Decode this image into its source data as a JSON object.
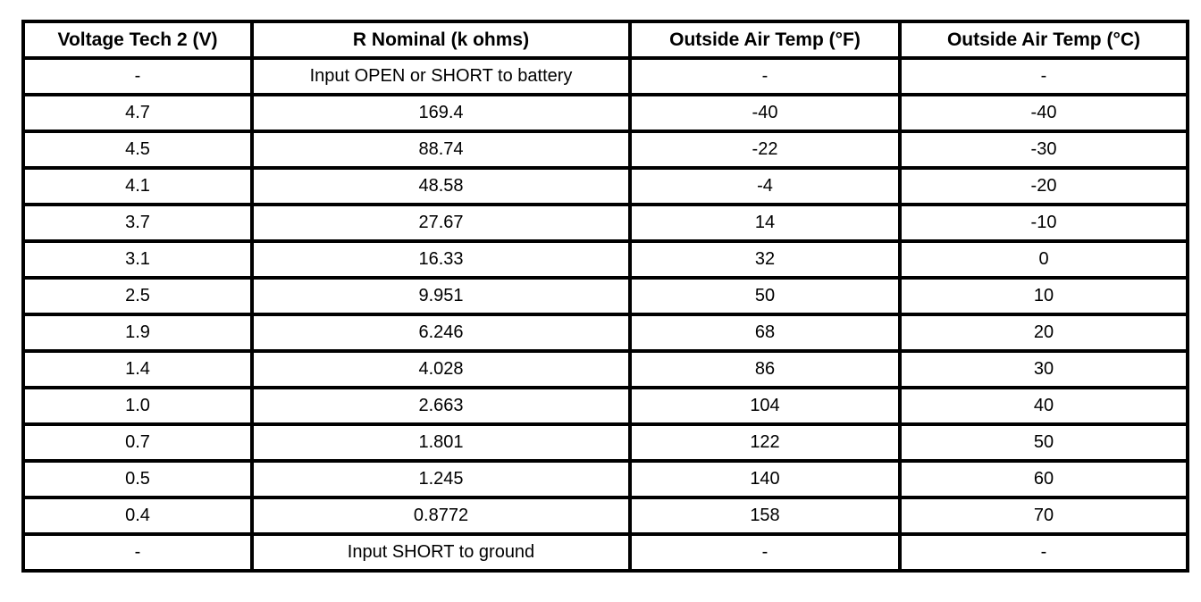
{
  "table": {
    "name": "outside-air-temp-sensor-spec-table",
    "border_color": "#000000",
    "background_color": "#ffffff",
    "text_color": "#000000",
    "columns": [
      "Voltage Tech 2 (V)",
      "R Nominal (k ohms)",
      "Outside Air Temp (°F)",
      "Outside Air Temp (°C)"
    ],
    "rows": [
      [
        "-",
        "Input OPEN or SHORT to battery",
        "-",
        "-"
      ],
      [
        "4.7",
        "169.4",
        "-40",
        "-40"
      ],
      [
        "4.5",
        "88.74",
        "-22",
        "-30"
      ],
      [
        "4.1",
        "48.58",
        "-4",
        "-20"
      ],
      [
        "3.7",
        "27.67",
        "14",
        "-10"
      ],
      [
        "3.1",
        "16.33",
        "32",
        "0"
      ],
      [
        "2.5",
        "9.951",
        "50",
        "10"
      ],
      [
        "1.9",
        "6.246",
        "68",
        "20"
      ],
      [
        "1.4",
        "4.028",
        "86",
        "30"
      ],
      [
        "1.0",
        "2.663",
        "104",
        "40"
      ],
      [
        "0.7",
        "1.801",
        "122",
        "50"
      ],
      [
        "0.5",
        "1.245",
        "140",
        "60"
      ],
      [
        "0.4",
        "0.8772",
        "158",
        "70"
      ],
      [
        "-",
        "Input SHORT to ground",
        "-",
        "-"
      ]
    ]
  }
}
